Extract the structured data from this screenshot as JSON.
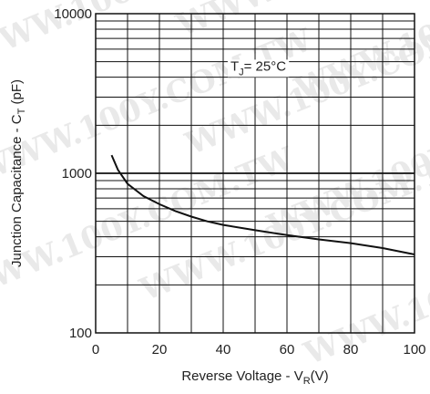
{
  "chart_data": {
    "type": "line",
    "xlabel": "Reverse Voltage - V",
    "xlabel_sub": "R",
    "xlabel_unit": "(V)",
    "ylabel": "Junction Capacitance - C",
    "ylabel_sub": "T",
    "ylabel_unit": "(pF)",
    "xlim": [
      0,
      100
    ],
    "ylim": [
      100,
      10000
    ],
    "yscale": "log",
    "x_ticks": [
      "0",
      "20",
      "40",
      "60",
      "80",
      "100"
    ],
    "y_ticks": [
      "100",
      "1000",
      "10000"
    ],
    "grid": true,
    "annotation": {
      "prefix": "T",
      "sub": "J",
      "suffix": "= 25°C",
      "x": 51,
      "y": 4400
    },
    "series": [
      {
        "x": [
          5,
          7,
          10,
          15,
          20,
          25,
          30,
          35,
          40,
          50,
          60,
          70,
          80,
          90,
          100
        ],
        "y": [
          1300,
          1050,
          860,
          720,
          640,
          580,
          535,
          500,
          475,
          440,
          410,
          385,
          365,
          340,
          310
        ]
      }
    ],
    "line_color": "#111111"
  },
  "watermark": "WWW.100Y.COM.TW"
}
